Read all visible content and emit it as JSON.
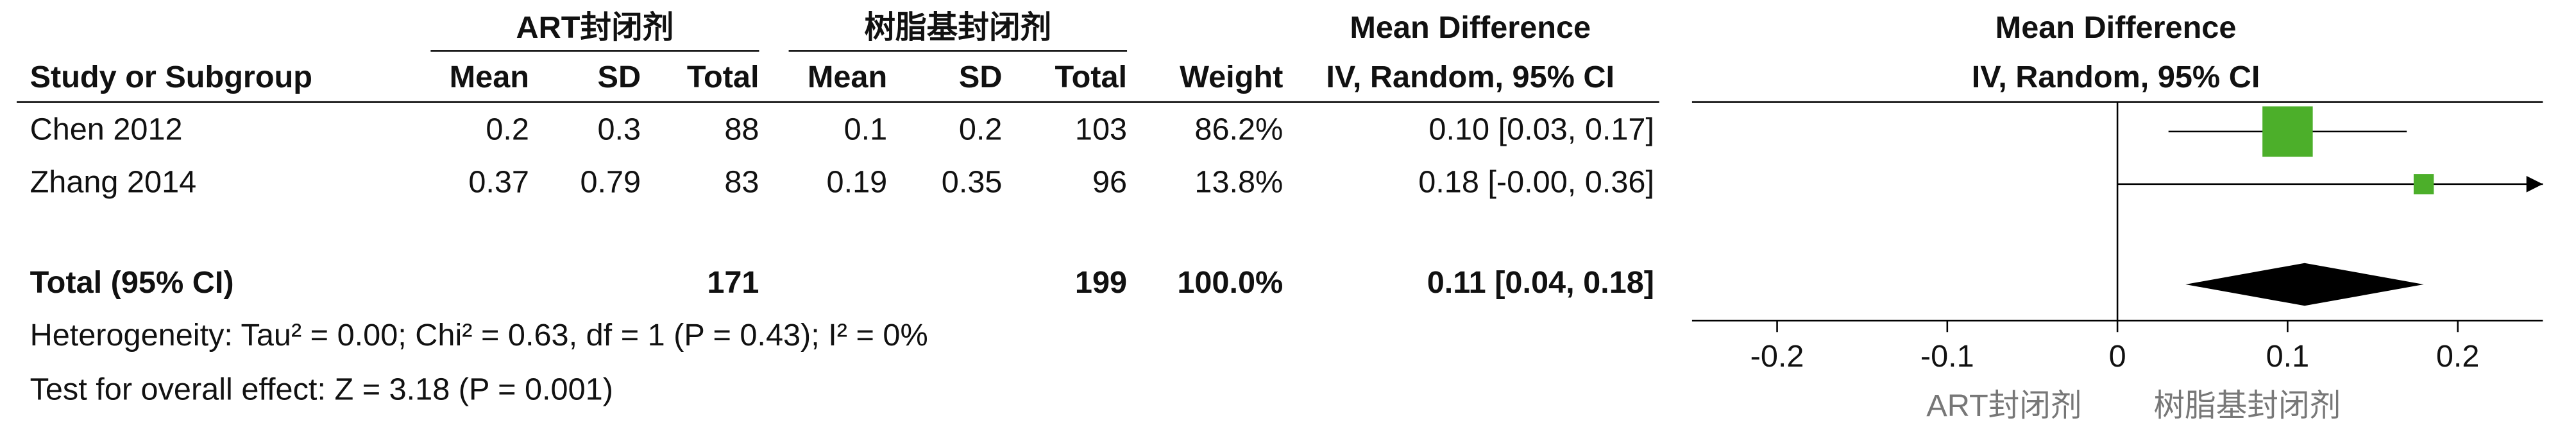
{
  "chart_data": {
    "type": "forest",
    "group_headers": [
      "ART封闭剂",
      "树脂基封闭剂"
    ],
    "effect_header": "Mean Difference",
    "columns": [
      "Study or Subgroup",
      "Mean",
      "SD",
      "Total",
      "Mean",
      "SD",
      "Total",
      "Weight",
      "IV, Random, 95% CI"
    ],
    "plot_header": "Mean Difference",
    "plot_subheader": "IV, Random, 95% CI",
    "studies": [
      {
        "name": "Chen 2012",
        "mean1": 0.2,
        "sd1": 0.3,
        "n1": 88,
        "mean2": 0.1,
        "sd2": 0.2,
        "n2": 103,
        "weight": 86.2,
        "weight_label": "86.2%",
        "md": 0.1,
        "lo": 0.03,
        "hi": 0.17,
        "ci_label": "0.10 [0.03, 0.17]"
      },
      {
        "name": "Zhang 2014",
        "mean1": 0.37,
        "sd1": 0.79,
        "n1": 83,
        "mean2": 0.19,
        "sd2": 0.35,
        "n2": 96,
        "weight": 13.8,
        "weight_label": "13.8%",
        "md": 0.18,
        "lo": 0,
        "hi": 0.36,
        "ci_label": "0.18 [-0.00, 0.36]"
      }
    ],
    "total": {
      "name": "Total (95% CI)",
      "n1": 171,
      "n2": 199,
      "weight": 100,
      "weight_label": "100.0%",
      "md": 0.11,
      "lo": 0.04,
      "hi": 0.18,
      "ci_label": "0.11 [0.04, 0.18]"
    },
    "heterogeneity": "Heterogeneity: Tau² = 0.00; Chi² = 0.63, df = 1  (P = 0.43); I² = 0%",
    "overall_effect": "Test for overall effect: Z = 3.18  (P = 0.001)",
    "xlim": [
      -0.25,
      0.25
    ],
    "xticks": [
      -0.2,
      -0.1,
      0,
      0.1,
      0.2
    ],
    "favours": [
      "ART封闭剂",
      "树脂基封闭剂"
    ],
    "square_color": "#4caf2a",
    "diamond_color": "#000000"
  }
}
